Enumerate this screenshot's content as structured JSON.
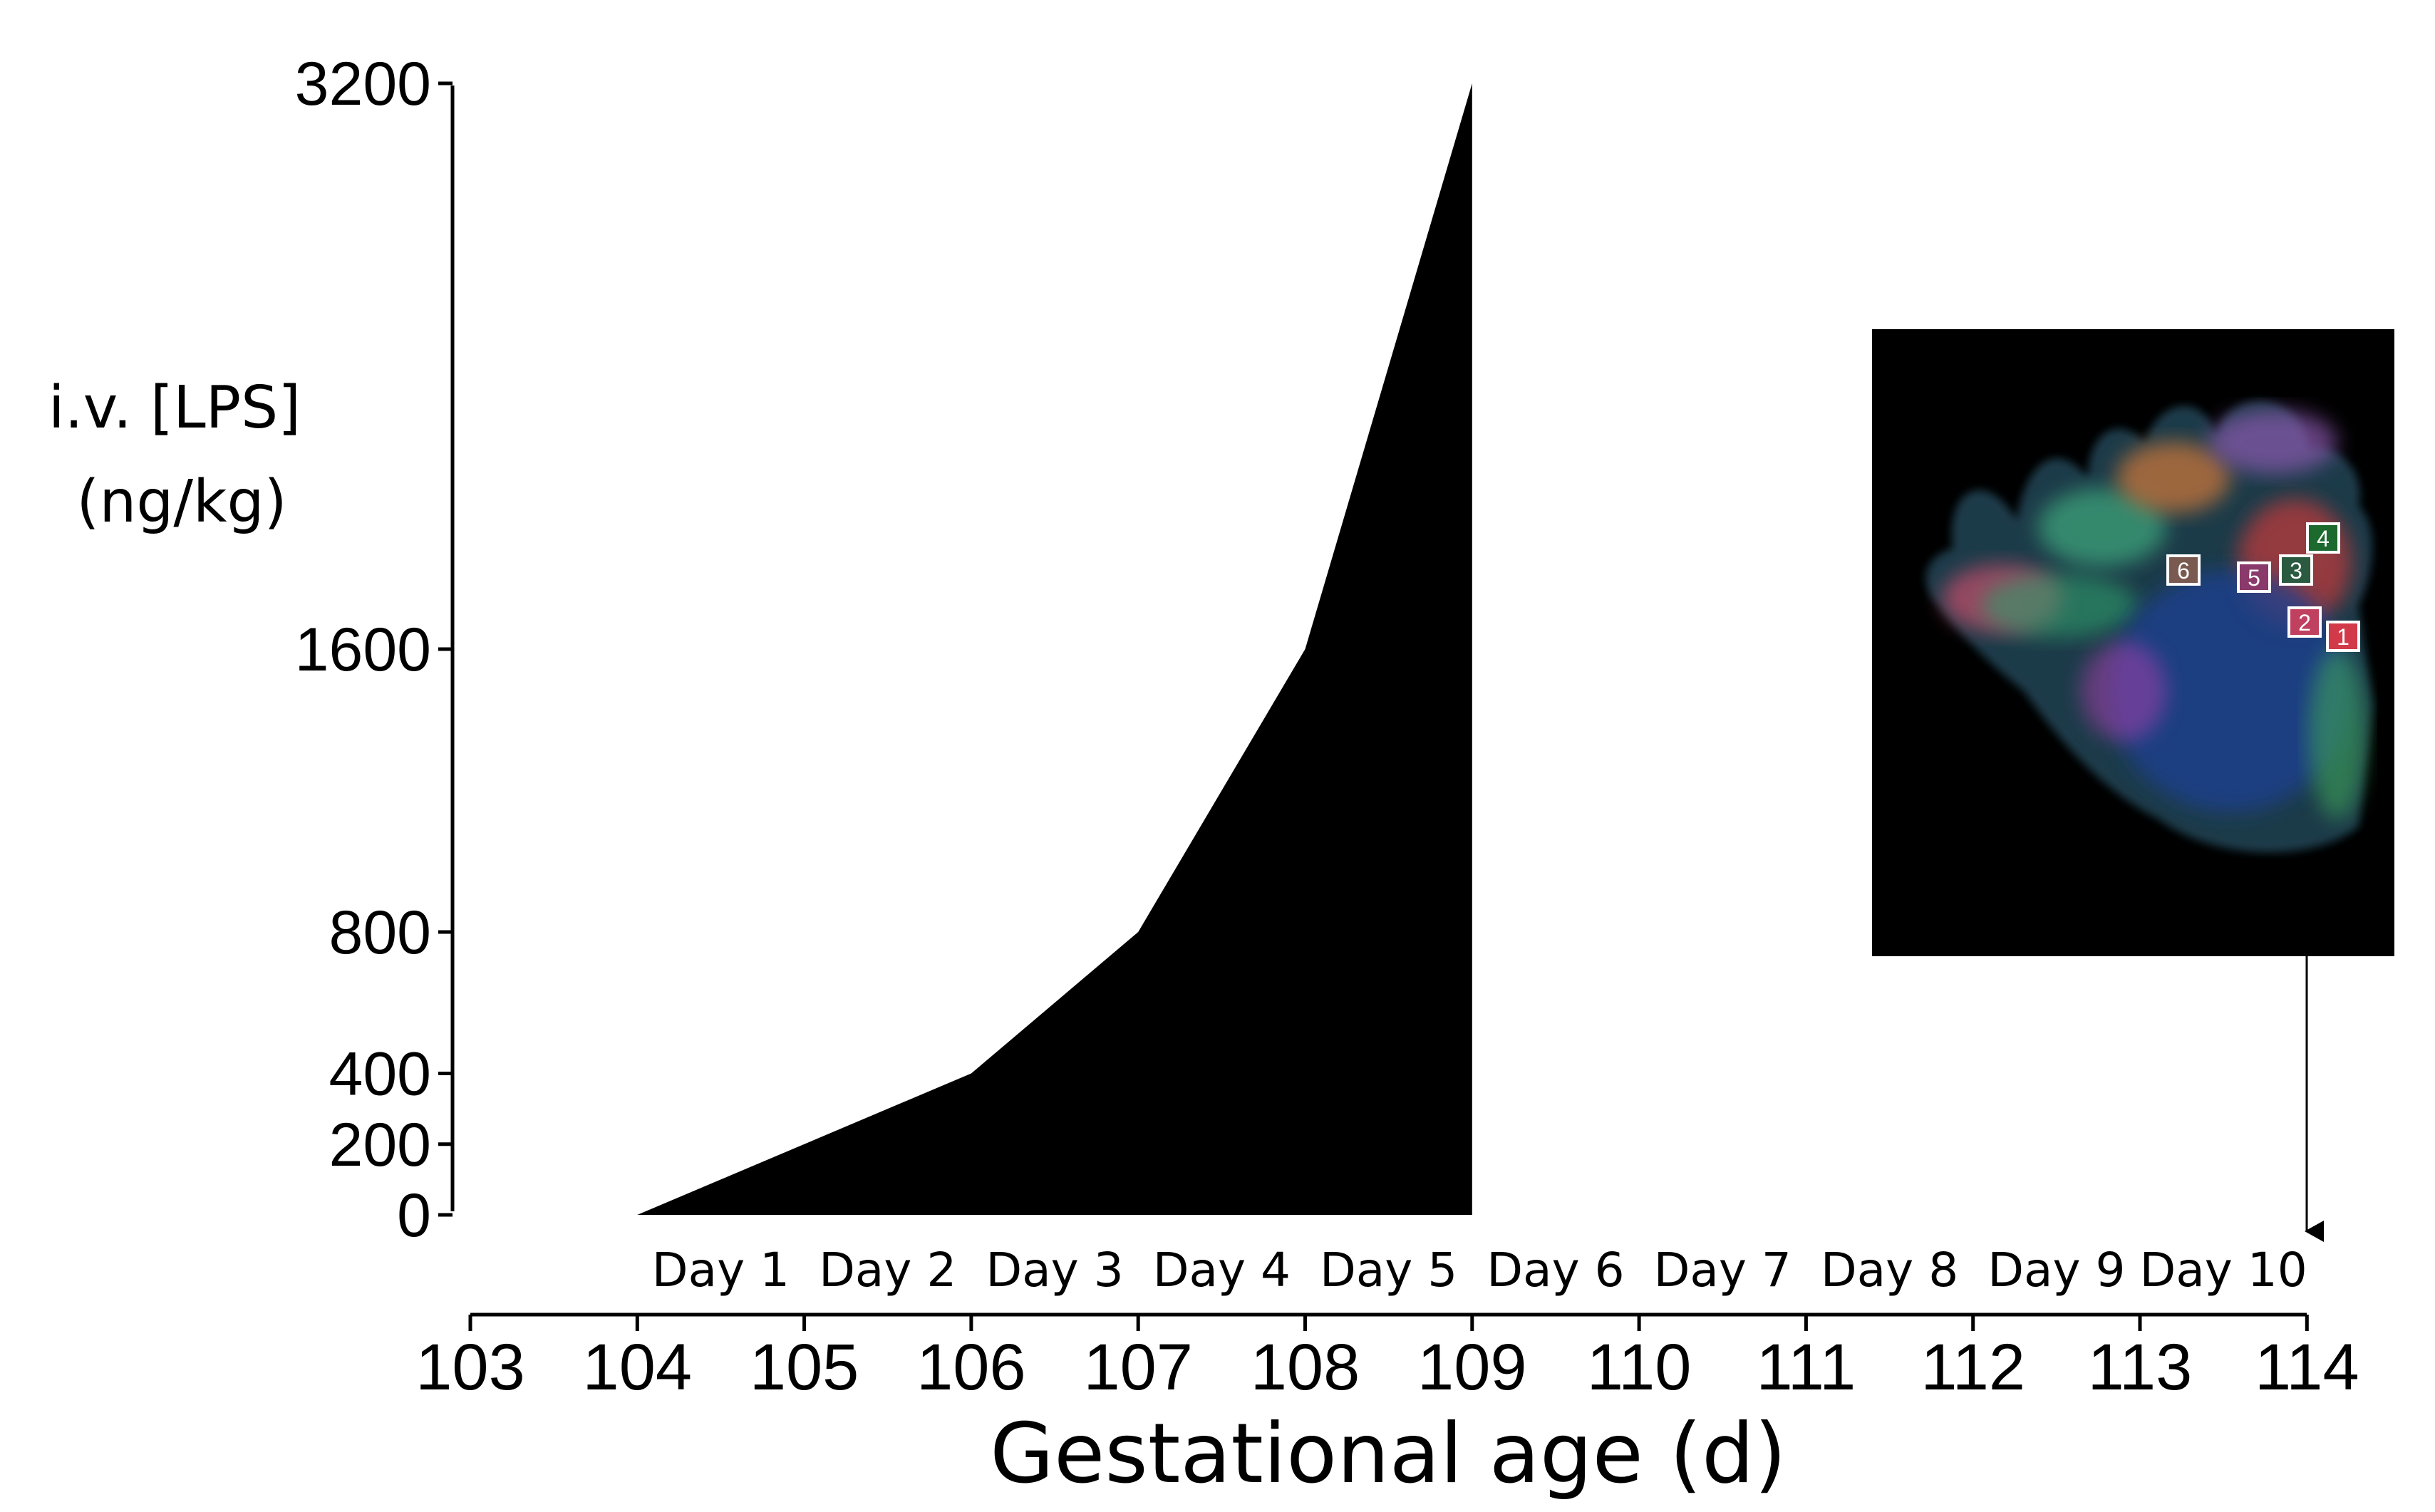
{
  "chart_data": {
    "type": "area",
    "xlabel": "Gestational age (d)",
    "ylabel": [
      "i.v. [LPS]",
      "(ng/kg)"
    ],
    "x_ticks": [
      103,
      104,
      105,
      106,
      107,
      108,
      109,
      110,
      111,
      112,
      113,
      114
    ],
    "y_ticks": [
      0,
      200,
      400,
      800,
      1600,
      3200
    ],
    "xlim": [
      103,
      114
    ],
    "ylim": [
      0,
      3200
    ],
    "day_labels": [
      "Day 1",
      "Day 2",
      "Day 3",
      "Day 4",
      "Day 5",
      "Day 6",
      "Day 7",
      "Day 8",
      "Day 9",
      "Day 10"
    ],
    "series": [
      {
        "x": [
          104,
          105,
          106,
          107,
          108,
          109
        ],
        "y": [
          0,
          200,
          400,
          800,
          1600,
          3200
        ],
        "color": "#000000"
      }
    ],
    "inset": {
      "type": "brain-dti-image",
      "attached_to_x": 114,
      "roi_labels": [
        "1",
        "2",
        "3",
        "4",
        "5",
        "6"
      ]
    }
  }
}
